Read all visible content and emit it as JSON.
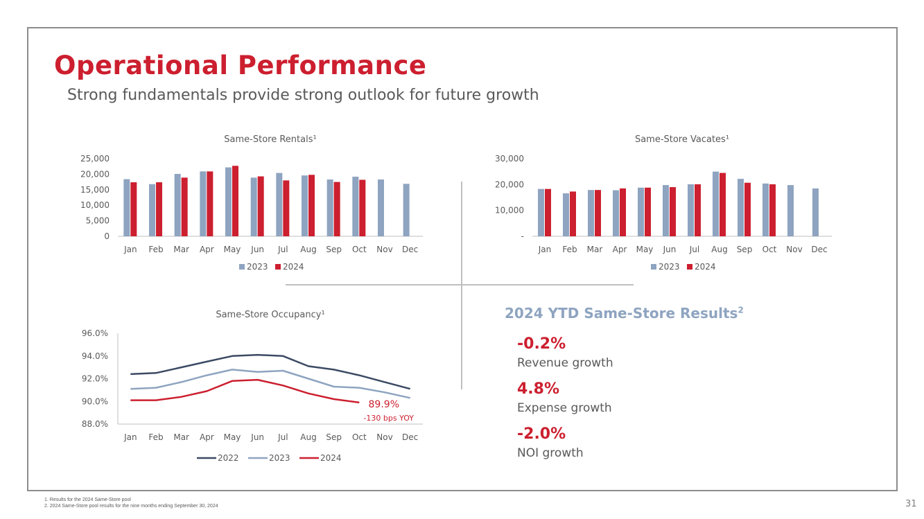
{
  "header": {
    "title": "Operational Performance",
    "subtitle": "Strong fundamentals provide strong outlook for future growth"
  },
  "colors": {
    "accent_red": "#cc1f2f",
    "series_2022": "#3b4a63",
    "series_2023": "#8ea4c0",
    "series_2024": "#cc1f2f",
    "text": "#595959"
  },
  "chart_data": [
    {
      "id": "rentals",
      "type": "bar",
      "title": "Same-Store Rentals¹",
      "categories": [
        "Jan",
        "Feb",
        "Mar",
        "Apr",
        "May",
        "Jun",
        "Jul",
        "Aug",
        "Sep",
        "Oct",
        "Nov",
        "Dec"
      ],
      "series": [
        {
          "name": "2023",
          "values": [
            18400,
            16800,
            20100,
            20900,
            22200,
            18900,
            20400,
            19600,
            18300,
            19200,
            18300,
            16900
          ]
        },
        {
          "name": "2024",
          "values": [
            17400,
            17400,
            18900,
            20900,
            22700,
            19300,
            18000,
            19800,
            17500,
            18200,
            null,
            null
          ]
        }
      ],
      "ylim": [
        0,
        25000
      ],
      "yticks": [
        0,
        5000,
        10000,
        15000,
        20000,
        25000
      ],
      "ytick_labels": [
        "0",
        "5,000",
        "10,000",
        "15,000",
        "20,000",
        "25,000"
      ],
      "legend": [
        "2023",
        "2024"
      ]
    },
    {
      "id": "vacates",
      "type": "bar",
      "title": "Same-Store Vacates¹",
      "categories": [
        "Jan",
        "Feb",
        "Mar",
        "Apr",
        "May",
        "Jun",
        "Jul",
        "Aug",
        "Sep",
        "Oct",
        "Nov",
        "Dec"
      ],
      "series": [
        {
          "name": "2023",
          "values": [
            18300,
            16600,
            17900,
            17800,
            18800,
            19800,
            20100,
            25000,
            22200,
            20400,
            19800,
            18500
          ]
        },
        {
          "name": "2024",
          "values": [
            18300,
            17300,
            17900,
            18500,
            18800,
            19000,
            20100,
            24500,
            20700,
            20100,
            null,
            null
          ]
        }
      ],
      "ylim": [
        0,
        30000
      ],
      "yticks": [
        0,
        10000,
        20000,
        30000
      ],
      "ytick_labels": [
        "-",
        "10,000",
        "20,000",
        "30,000"
      ],
      "legend": [
        "2023",
        "2024"
      ]
    },
    {
      "id": "occupancy",
      "type": "line",
      "title": "Same-Store Occupancy¹",
      "categories": [
        "Jan",
        "Feb",
        "Mar",
        "Apr",
        "May",
        "Jun",
        "Jul",
        "Aug",
        "Sep",
        "Oct",
        "Nov",
        "Dec"
      ],
      "series": [
        {
          "name": "2022",
          "values": [
            92.4,
            92.5,
            93.0,
            93.5,
            94.0,
            94.1,
            94.0,
            93.1,
            92.8,
            92.3,
            91.7,
            91.1
          ]
        },
        {
          "name": "2023",
          "values": [
            91.1,
            91.2,
            91.7,
            92.3,
            92.8,
            92.6,
            92.7,
            92.0,
            91.3,
            91.2,
            90.8,
            90.3
          ]
        },
        {
          "name": "2024",
          "values": [
            90.1,
            90.1,
            90.4,
            90.9,
            91.8,
            91.9,
            91.4,
            90.7,
            90.2,
            89.9,
            null,
            null
          ]
        }
      ],
      "ylim": [
        88.0,
        96.0
      ],
      "yticks": [
        88.0,
        90.0,
        92.0,
        94.0,
        96.0
      ],
      "ytick_labels": [
        "88.0%",
        "90.0%",
        "92.0%",
        "94.0%",
        "96.0%"
      ],
      "annotation": {
        "value": "89.9%",
        "note": "-130 bps YOY"
      },
      "legend": [
        "2022",
        "2023",
        "2024"
      ]
    }
  ],
  "results": {
    "title": "2024 YTD Same-Store Results",
    "title_sup": "2",
    "metrics": [
      {
        "value": "-0.2%",
        "label": "Revenue growth"
      },
      {
        "value": "4.8%",
        "label": "Expense growth"
      },
      {
        "value": "-2.0%",
        "label": "NOI growth"
      }
    ]
  },
  "footnotes": [
    "1.    Results for the 2024 Same-Store pool",
    "2.    2024 Same-Store pool results for the nine months ending September 30, 2024"
  ],
  "page_number": "31"
}
